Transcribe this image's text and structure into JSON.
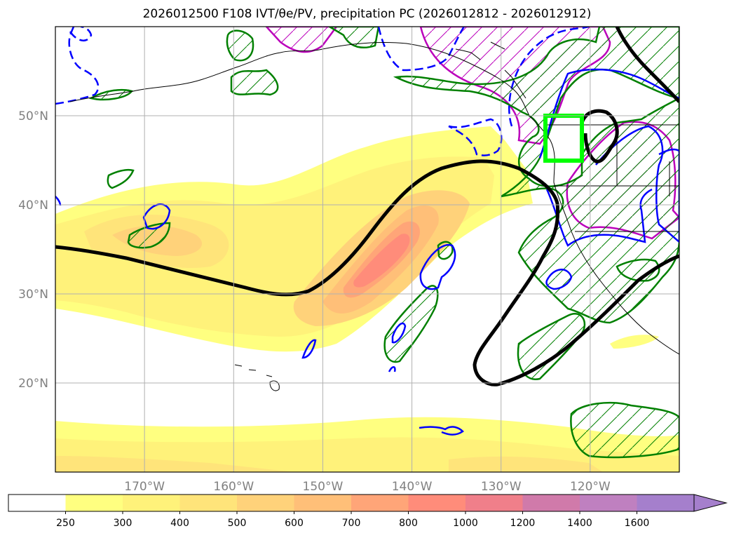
{
  "title": "2026012500 F108 IVT/θe/PV, precipitation PC (2026012812 - 2026012912)",
  "map": {
    "lon_range": [
      -180,
      -110
    ],
    "lat_range": [
      10,
      60
    ],
    "lat_ticks": [
      {
        "value": 50,
        "label": "50°N"
      },
      {
        "value": 40,
        "label": "40°N"
      },
      {
        "value": 30,
        "label": "30°N"
      },
      {
        "value": 20,
        "label": "20°N"
      }
    ],
    "lon_ticks": [
      {
        "value": -170,
        "label": "170°W"
      },
      {
        "value": -160,
        "label": "160°W"
      },
      {
        "value": -150,
        "label": "150°W"
      },
      {
        "value": -140,
        "label": "140°W"
      },
      {
        "value": -130,
        "label": "130°W"
      },
      {
        "value": -120,
        "label": "120°W"
      }
    ],
    "grid": true,
    "highlight_box": {
      "lon": [
        -125,
        -121
      ],
      "lat": [
        45,
        50
      ],
      "color": "#00ff00"
    }
  },
  "colorbar": {
    "levels": [
      "250",
      "300",
      "400",
      "500",
      "600",
      "700",
      "800",
      "1000",
      "1200",
      "1400",
      "1600"
    ],
    "colors": [
      "#ffffff",
      "#ffff80",
      "#fff27a",
      "#ffe47a",
      "#ffd27a",
      "#ffbf78",
      "#ffa578",
      "#ff8c7a",
      "#f07f8a",
      "#d07aaa",
      "#bf80c0",
      "#a57fcc"
    ],
    "extend": "max"
  },
  "contour_colors": {
    "theta_e": "#000000",
    "pv_dashed": "#0000ff",
    "precip": "#008000",
    "ivt_outline": "#0000ff",
    "hatch_magenta": "#bb00bb"
  }
}
